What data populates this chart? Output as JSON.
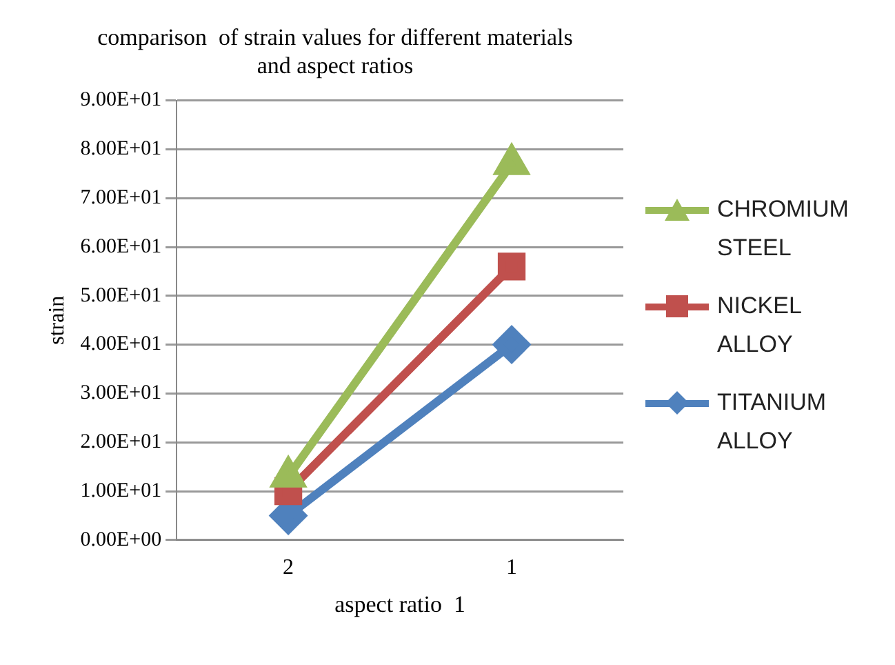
{
  "chart_data": {
    "type": "line",
    "title": "comparison  of strain values for different materials and aspect ratios",
    "xlabel": "aspect ratio  1",
    "ylabel": "strain",
    "categories": [
      "2",
      "1"
    ],
    "series": [
      {
        "name": "CHROMIUM STEEL",
        "color": "#9bbb59",
        "values": [
          13,
          77
        ],
        "marker": "triangle"
      },
      {
        "name": "NICKEL ALLOY",
        "color": "#c0504d",
        "values": [
          10,
          56
        ],
        "marker": "square"
      },
      {
        "name": "TITANIUM ALLOY",
        "color": "#4f81bd",
        "values": [
          5,
          40
        ],
        "marker": "diamond"
      }
    ],
    "ylim": [
      0,
      90
    ],
    "yticks": [
      {
        "value": 0,
        "label": "0.00E+00"
      },
      {
        "value": 10,
        "label": "1.00E+01"
      },
      {
        "value": 20,
        "label": "2.00E+01"
      },
      {
        "value": 30,
        "label": "3.00E+01"
      },
      {
        "value": 40,
        "label": "4.00E+01"
      },
      {
        "value": 50,
        "label": "5.00E+01"
      },
      {
        "value": 60,
        "label": "6.00E+01"
      },
      {
        "value": 70,
        "label": "7.00E+01"
      },
      {
        "value": 80,
        "label": "8.00E+01"
      },
      {
        "value": 90,
        "label": "9.00E+01"
      }
    ],
    "grid": "y",
    "legend": "right"
  }
}
